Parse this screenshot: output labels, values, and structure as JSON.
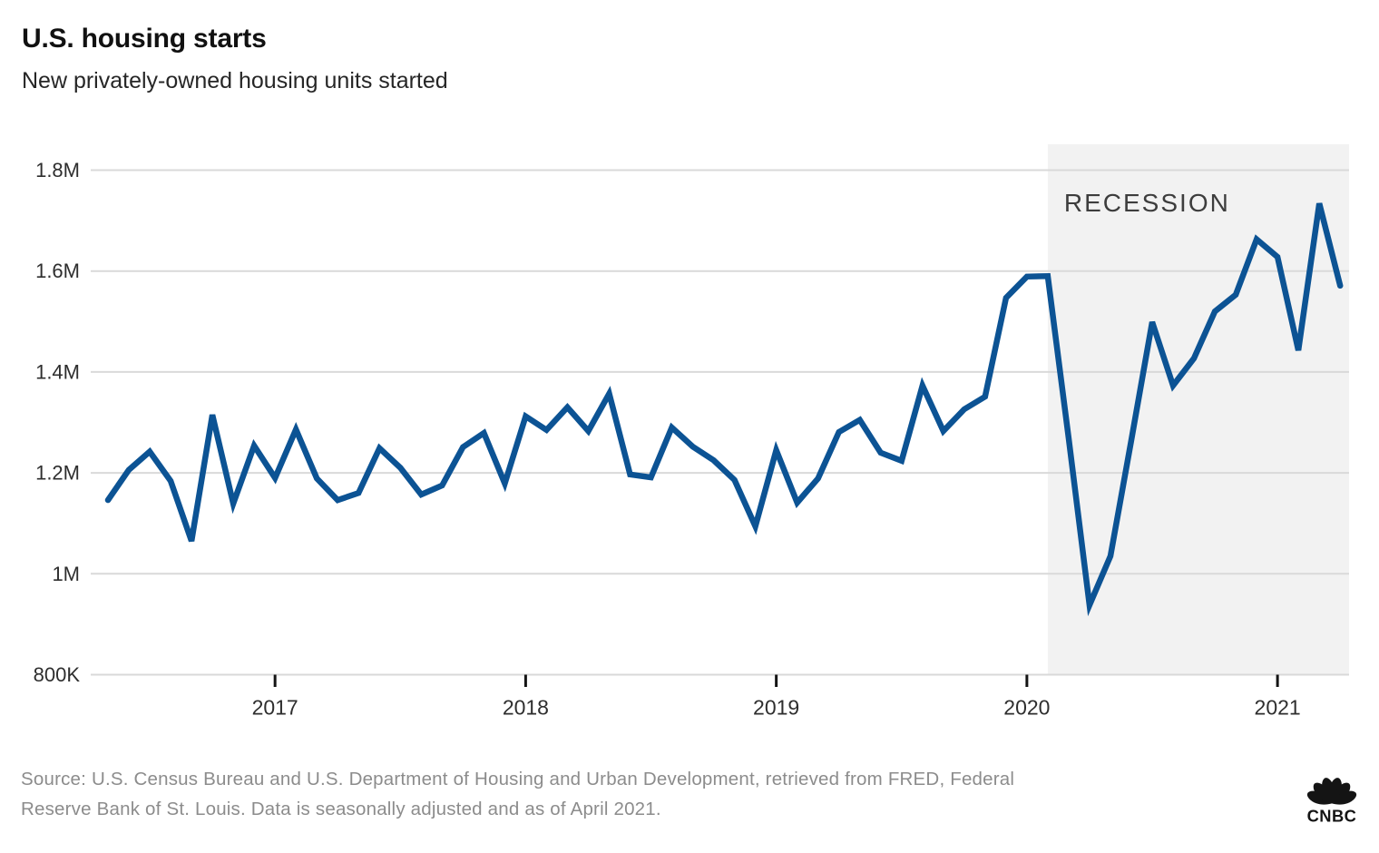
{
  "header": {
    "title": "U.S. housing starts",
    "subtitle": "New privately-owned housing units started"
  },
  "chart_data": {
    "type": "line",
    "title": "U.S. housing starts",
    "series_name": "New privately-owned housing units started",
    "units": "millions of units",
    "line_color": "#0c5394",
    "grid": true,
    "legend": false,
    "ylim": [
      0.8,
      1.85
    ],
    "y_ticks": [
      {
        "value": 1.8,
        "label": "1.8M"
      },
      {
        "value": 1.6,
        "label": "1.6M"
      },
      {
        "value": 1.4,
        "label": "1.4M"
      },
      {
        "value": 1.2,
        "label": "1.2M"
      },
      {
        "value": 1.0,
        "label": "1M"
      },
      {
        "value": 0.8,
        "label": "800K"
      }
    ],
    "x_ticks": [
      {
        "date": "2017-01",
        "label": "2017"
      },
      {
        "date": "2018-01",
        "label": "2018"
      },
      {
        "date": "2019-01",
        "label": "2019"
      },
      {
        "date": "2020-01",
        "label": "2020"
      },
      {
        "date": "2021-01",
        "label": "2021"
      }
    ],
    "recession": {
      "label": "RECESSION",
      "start": "2020-02",
      "end": "2021-04",
      "shade_color": "#f2f2f2",
      "label_color": "#3d3d3d"
    },
    "x": [
      "2016-05",
      "2016-06",
      "2016-07",
      "2016-08",
      "2016-09",
      "2016-10",
      "2016-11",
      "2016-12",
      "2017-01",
      "2017-02",
      "2017-03",
      "2017-04",
      "2017-05",
      "2017-06",
      "2017-07",
      "2017-08",
      "2017-09",
      "2017-10",
      "2017-11",
      "2017-12",
      "2018-01",
      "2018-02",
      "2018-03",
      "2018-04",
      "2018-05",
      "2018-06",
      "2018-07",
      "2018-08",
      "2018-09",
      "2018-10",
      "2018-11",
      "2018-12",
      "2019-01",
      "2019-02",
      "2019-03",
      "2019-04",
      "2019-05",
      "2019-06",
      "2019-07",
      "2019-08",
      "2019-09",
      "2019-10",
      "2019-11",
      "2019-12",
      "2020-01",
      "2020-02",
      "2020-03",
      "2020-04",
      "2020-05",
      "2020-06",
      "2020-07",
      "2020-08",
      "2020-09",
      "2020-10",
      "2020-11",
      "2020-12",
      "2021-01",
      "2021-02",
      "2021-03",
      "2021-04"
    ],
    "values": [
      1.146,
      1.206,
      1.242,
      1.184,
      1.065,
      1.315,
      1.139,
      1.254,
      1.19,
      1.286,
      1.189,
      1.146,
      1.16,
      1.249,
      1.21,
      1.157,
      1.175,
      1.251,
      1.279,
      1.179,
      1.312,
      1.285,
      1.33,
      1.283,
      1.357,
      1.197,
      1.191,
      1.29,
      1.252,
      1.225,
      1.186,
      1.094,
      1.245,
      1.141,
      1.189,
      1.281,
      1.305,
      1.24,
      1.224,
      1.373,
      1.283,
      1.326,
      1.351,
      1.547,
      1.589,
      1.59,
      1.269,
      0.938,
      1.035,
      1.265,
      1.499,
      1.373,
      1.427,
      1.52,
      1.553,
      1.663,
      1.628,
      1.443,
      1.734,
      1.571
    ]
  },
  "footer": {
    "source_line1": "Source: U.S. Census Bureau and U.S. Department of Housing and Urban Development, retrieved from FRED, Federal",
    "source_line2": "Reserve Bank of St. Louis. Data is seasonally adjusted and as of April 2021.",
    "logo_text": "CNBC"
  }
}
